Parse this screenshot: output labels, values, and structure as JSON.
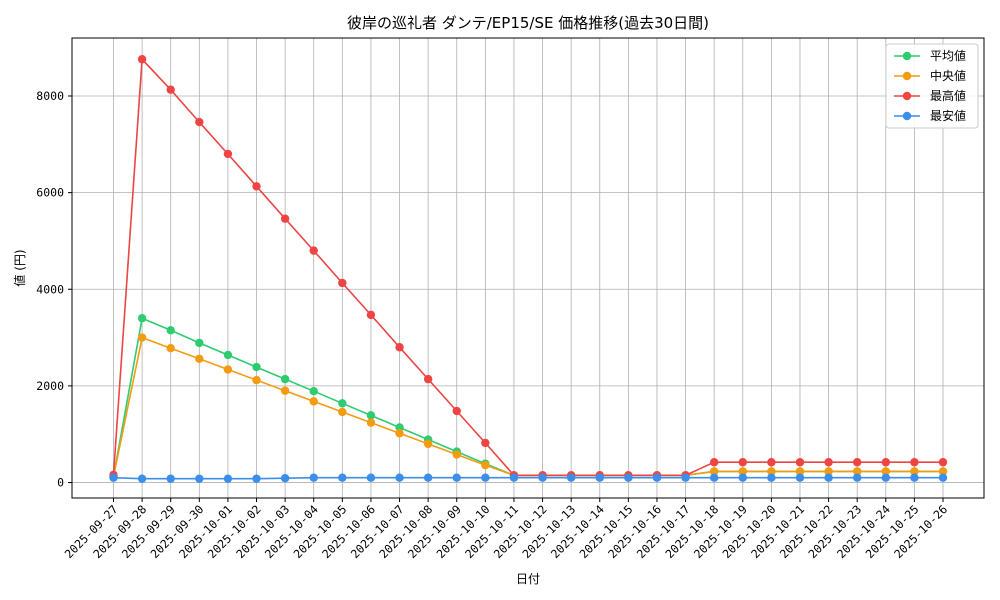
{
  "chart_data": {
    "type": "line",
    "title": "彼岸の巡礼者 ダンテ/EP15/SE 価格推移(過去30日間)",
    "xlabel": "日付",
    "ylabel": "値 (円)",
    "ylim": [
      -320,
      9200
    ],
    "yticks": [
      0,
      2000,
      4000,
      6000,
      8000
    ],
    "grid": true,
    "legend_position": "top-right",
    "x": [
      "2025-09-27",
      "2025-09-28",
      "2025-09-29",
      "2025-09-30",
      "2025-10-01",
      "2025-10-02",
      "2025-10-03",
      "2025-10-04",
      "2025-10-05",
      "2025-10-06",
      "2025-10-07",
      "2025-10-08",
      "2025-10-09",
      "2025-10-10",
      "2025-10-11",
      "2025-10-12",
      "2025-10-13",
      "2025-10-14",
      "2025-10-15",
      "2025-10-16",
      "2025-10-17",
      "2025-10-18",
      "2025-10-19",
      "2025-10-20",
      "2025-10-21",
      "2025-10-22",
      "2025-10-23",
      "2025-10-24",
      "2025-10-25",
      "2025-10-26"
    ],
    "series": [
      {
        "name": "平均値",
        "color": "#2ecc71",
        "values": [
          120,
          3400,
          3150,
          2890,
          2640,
          2390,
          2140,
          1890,
          1640,
          1390,
          1140,
          890,
          640,
          390,
          150,
          150,
          150,
          150,
          150,
          150,
          150,
          230,
          230,
          230,
          230,
          230,
          230,
          230,
          230,
          230
        ]
      },
      {
        "name": "中央値",
        "color": "#f39c12",
        "values": [
          120,
          3000,
          2780,
          2560,
          2340,
          2120,
          1900,
          1680,
          1460,
          1240,
          1020,
          800,
          580,
          360,
          150,
          150,
          150,
          150,
          150,
          150,
          150,
          230,
          230,
          230,
          230,
          230,
          230,
          230,
          230,
          230
        ]
      },
      {
        "name": "最高値",
        "color": "#ef4444",
        "values": [
          160,
          8760,
          8130,
          7460,
          6800,
          6130,
          5460,
          4800,
          4130,
          3470,
          2800,
          2140,
          1480,
          820,
          150,
          150,
          150,
          150,
          150,
          150,
          150,
          420,
          420,
          420,
          420,
          420,
          420,
          420,
          420,
          420
        ]
      },
      {
        "name": "最安値",
        "color": "#3b8eea",
        "values": [
          100,
          80,
          80,
          80,
          80,
          80,
          90,
          100,
          100,
          100,
          100,
          100,
          100,
          100,
          100,
          100,
          100,
          100,
          100,
          100,
          100,
          100,
          100,
          100,
          100,
          100,
          100,
          100,
          100,
          100
        ]
      }
    ]
  }
}
